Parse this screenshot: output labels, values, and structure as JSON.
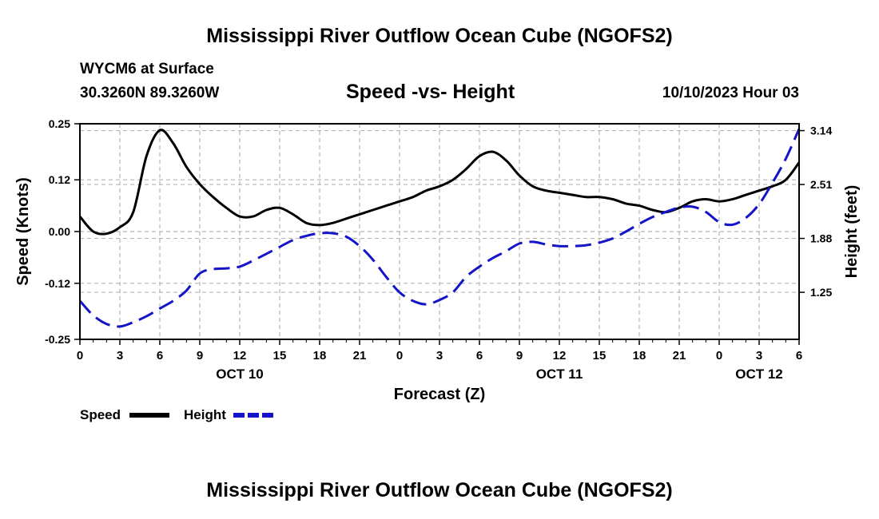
{
  "titles": {
    "top": "Mississippi River Outflow Ocean Cube (NGOFS2)",
    "bottom": "Mississippi River Outflow Ocean Cube (NGOFS2)"
  },
  "header": {
    "station": "WYCM6 at Surface",
    "coords": "30.3260N  89.3260W",
    "chart_title": "Speed -vs- Height",
    "datetime": "10/10/2023 Hour 03"
  },
  "colors": {
    "speed": "#000000",
    "height": "#1414c8",
    "grid": "#b4b4b4"
  },
  "chart_data": {
    "type": "line",
    "title": "Speed -vs- Height",
    "xlabel": "Forecast (Z)",
    "ylabel": "Speed (Knots)",
    "y2label": "Height (feet)",
    "xlim": [
      0,
      54
    ],
    "ylim": [
      -0.25,
      0.25
    ],
    "y2lim": [
      0.7,
      3.22
    ],
    "grid": true,
    "x_ticks": [
      0,
      3,
      6,
      9,
      12,
      15,
      18,
      21,
      24,
      27,
      30,
      33,
      36,
      39,
      42,
      45,
      48,
      51,
      54
    ],
    "x_tick_labels": [
      "0",
      "3",
      "6",
      "9",
      "12",
      "15",
      "18",
      "21",
      "0",
      "3",
      "6",
      "9",
      "12",
      "15",
      "18",
      "21",
      "0",
      "3",
      "6"
    ],
    "date_labels": [
      {
        "x": 12,
        "label": "OCT 10"
      },
      {
        "x": 36,
        "label": "OCT 11"
      },
      {
        "x": 51,
        "label": "OCT 12"
      }
    ],
    "y_ticks": [
      0.25,
      0.12,
      0.0,
      -0.12,
      -0.25
    ],
    "y_tick_labels": [
      "0.25",
      "0.12",
      "0.00",
      "-0.12",
      "-0.25"
    ],
    "y2_ticks": [
      3.14,
      2.51,
      1.88,
      1.25
    ],
    "y2_tick_labels": [
      "3.14",
      "2.51",
      "1.88",
      "1.25"
    ],
    "series": [
      {
        "name": "Speed",
        "axis": "left",
        "style": "solid",
        "x": [
          0,
          1,
          2,
          3,
          4,
          5,
          6,
          7,
          8,
          9,
          10,
          11,
          12,
          13,
          14,
          15,
          16,
          17,
          18,
          19,
          20,
          21,
          22,
          23,
          24,
          25,
          26,
          27,
          28,
          29,
          30,
          31,
          32,
          33,
          34,
          35,
          36,
          37,
          38,
          39,
          40,
          41,
          42,
          43,
          44,
          45,
          46,
          47,
          48,
          49,
          50,
          51,
          52,
          53,
          54
        ],
        "values": [
          0.035,
          0.0,
          -0.005,
          0.01,
          0.045,
          0.175,
          0.235,
          0.205,
          0.15,
          0.11,
          0.08,
          0.055,
          0.035,
          0.035,
          0.05,
          0.055,
          0.04,
          0.02,
          0.015,
          0.02,
          0.03,
          0.04,
          0.05,
          0.06,
          0.07,
          0.08,
          0.095,
          0.105,
          0.12,
          0.145,
          0.175,
          0.185,
          0.165,
          0.13,
          0.105,
          0.095,
          0.09,
          0.085,
          0.08,
          0.08,
          0.075,
          0.065,
          0.06,
          0.05,
          0.045,
          0.055,
          0.07,
          0.075,
          0.07,
          0.075,
          0.085,
          0.095,
          0.105,
          0.12,
          0.16
        ]
      },
      {
        "name": "Height",
        "axis": "right",
        "style": "dashed",
        "x": [
          0,
          1,
          2,
          3,
          4,
          5,
          6,
          7,
          8,
          9,
          10,
          11,
          12,
          13,
          14,
          15,
          16,
          17,
          18,
          19,
          20,
          21,
          22,
          23,
          24,
          25,
          26,
          27,
          28,
          29,
          30,
          31,
          32,
          33,
          34,
          35,
          36,
          37,
          38,
          39,
          40,
          41,
          42,
          43,
          44,
          45,
          46,
          47,
          48,
          49,
          50,
          51,
          52,
          53,
          54
        ],
        "values": [
          1.15,
          0.98,
          0.88,
          0.85,
          0.9,
          0.97,
          1.06,
          1.15,
          1.27,
          1.47,
          1.52,
          1.53,
          1.55,
          1.62,
          1.7,
          1.78,
          1.86,
          1.91,
          1.94,
          1.94,
          1.9,
          1.79,
          1.63,
          1.43,
          1.25,
          1.15,
          1.11,
          1.16,
          1.25,
          1.43,
          1.55,
          1.65,
          1.73,
          1.82,
          1.84,
          1.81,
          1.79,
          1.79,
          1.8,
          1.83,
          1.88,
          1.96,
          2.05,
          2.13,
          2.19,
          2.24,
          2.25,
          2.19,
          2.07,
          2.04,
          2.12,
          2.28,
          2.53,
          2.81,
          3.16
        ]
      }
    ],
    "legend": [
      {
        "label": "Speed"
      },
      {
        "label": "Height"
      }
    ]
  }
}
